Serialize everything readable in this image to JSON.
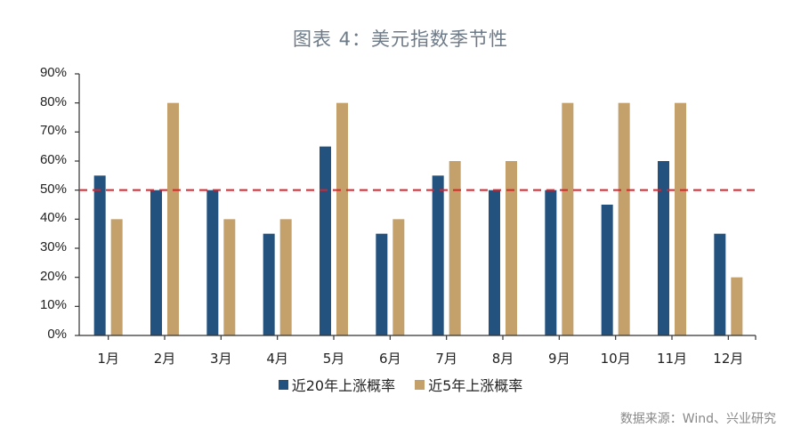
{
  "header": {
    "title": "图表 4：美元指数季节性"
  },
  "legend": {
    "items": [
      {
        "label": "近20年上涨概率",
        "color": "#24527f"
      },
      {
        "label": "近5年上涨概率",
        "color": "#c4a06a"
      }
    ]
  },
  "footer": {
    "source": "数据来源：Wind、兴业研究"
  },
  "colors": {
    "series_20y": "#24527f",
    "series_5y": "#c4a06a",
    "reference_line": "#e0202a",
    "axis": "#333333"
  },
  "chart_data": {
    "type": "bar",
    "title": "图表 4：美元指数季节性",
    "xlabel": "",
    "ylabel": "",
    "categories": [
      "1月",
      "2月",
      "3月",
      "4月",
      "5月",
      "6月",
      "7月",
      "8月",
      "9月",
      "10月",
      "11月",
      "12月"
    ],
    "series": [
      {
        "name": "近20年上涨概率",
        "values": [
          55,
          50,
          50,
          35,
          65,
          35,
          55,
          50,
          50,
          45,
          60,
          35
        ]
      },
      {
        "name": "近5年上涨概率",
        "values": [
          40,
          80,
          40,
          40,
          80,
          40,
          60,
          60,
          80,
          80,
          80,
          20
        ]
      }
    ],
    "ylim": [
      0,
      90
    ],
    "yticks": [
      "0%",
      "10%",
      "20%",
      "30%",
      "40%",
      "50%",
      "60%",
      "70%",
      "80%",
      "90%"
    ],
    "unit": "%",
    "reference_line": {
      "y": 50,
      "style": "dashed",
      "color": "#e0202a"
    },
    "grid": false,
    "legend_position": "bottom",
    "source": "数据来源：Wind、兴业研究"
  }
}
